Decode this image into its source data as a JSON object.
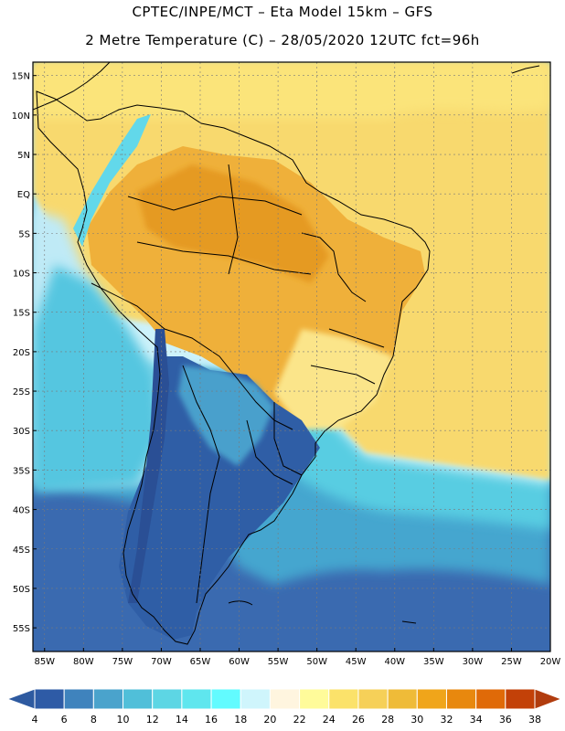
{
  "title_line1": "CPTEC/INPE/MCT –  Eta Model 15km – GFS",
  "title_line2": "2 Metre Temperature (C) – 28/05/2020 12UTC fct=96h",
  "lat_ticks": [
    {
      "label": "15N",
      "value": 15
    },
    {
      "label": "10N",
      "value": 10
    },
    {
      "label": "5N",
      "value": 5
    },
    {
      "label": "EQ",
      "value": 0
    },
    {
      "label": "5S",
      "value": -5
    },
    {
      "label": "10S",
      "value": -10
    },
    {
      "label": "15S",
      "value": -15
    },
    {
      "label": "20S",
      "value": -20
    },
    {
      "label": "25S",
      "value": -25
    },
    {
      "label": "30S",
      "value": -30
    },
    {
      "label": "35S",
      "value": -35
    },
    {
      "label": "40S",
      "value": -40
    },
    {
      "label": "45S",
      "value": -45
    },
    {
      "label": "50S",
      "value": -50
    },
    {
      "label": "55S",
      "value": -55
    }
  ],
  "lon_ticks": [
    {
      "label": "85W",
      "value": -85
    },
    {
      "label": "80W",
      "value": -80
    },
    {
      "label": "75W",
      "value": -75
    },
    {
      "label": "70W",
      "value": -70
    },
    {
      "label": "65W",
      "value": -65
    },
    {
      "label": "60W",
      "value": -60
    },
    {
      "label": "55W",
      "value": -55
    },
    {
      "label": "50W",
      "value": -50
    },
    {
      "label": "45W",
      "value": -45
    },
    {
      "label": "40W",
      "value": -40
    },
    {
      "label": "35W",
      "value": -35
    },
    {
      "label": "30W",
      "value": -30
    },
    {
      "label": "25W",
      "value": -25
    },
    {
      "label": "20W",
      "value": -20
    }
  ],
  "colorbar": {
    "labels": [
      "4",
      "6",
      "8",
      "10",
      "12",
      "14",
      "16",
      "18",
      "20",
      "22",
      "24",
      "26",
      "28",
      "30",
      "32",
      "34",
      "36",
      "38"
    ],
    "low_color": "#2e5aa0",
    "high_color": "#b13c0e",
    "colors": [
      "#2e5ba6",
      "#3f83bd",
      "#4aa3cc",
      "#50bfd9",
      "#5dd6e4",
      "#5fe6ee",
      "#62fbff",
      "#cff5fc",
      "#fff5df",
      "#fffb9a",
      "#fbe26a",
      "#f6d058",
      "#efbb38",
      "#f0a51a",
      "#e8880e",
      "#e06a08",
      "#c34108"
    ]
  },
  "legend_colors": {
    "ocean_cold": "#3a6ab0",
    "ocean_mid": "#4cb3d4",
    "ocean_warm": "#5fdde8",
    "tropical_sea": "#f8d668",
    "land_hot": "#efb43a",
    "land_cold": "#2f5ea6"
  }
}
